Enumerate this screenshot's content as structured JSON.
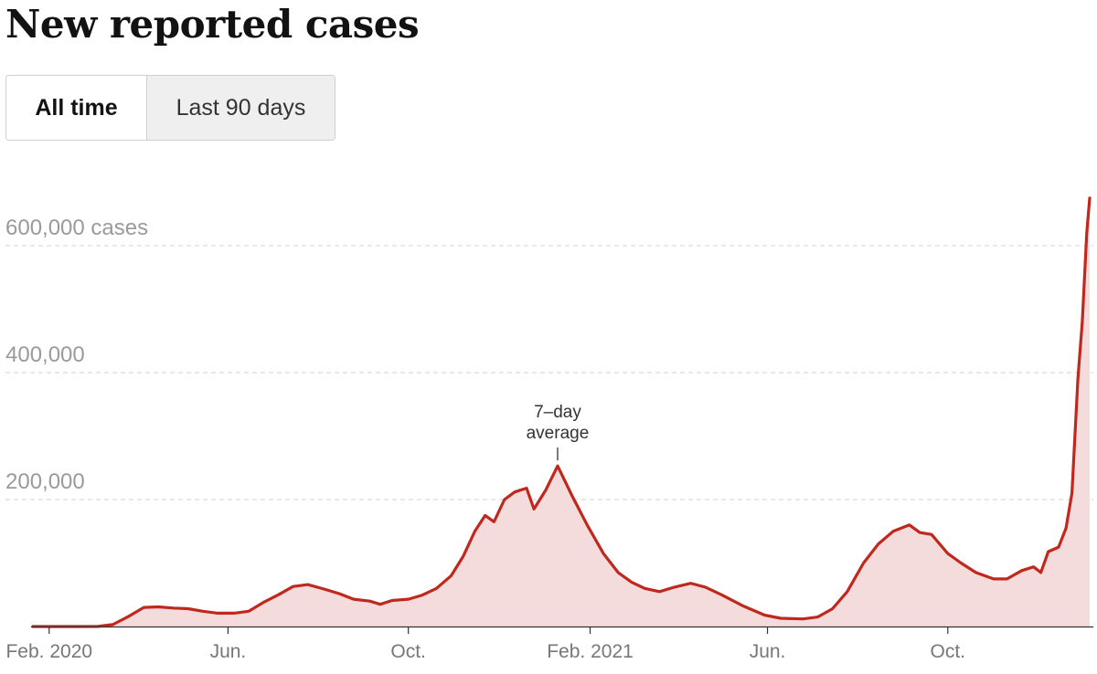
{
  "header": {
    "title": "New reported cases"
  },
  "range_toggle": {
    "options": [
      "All time",
      "Last 90 days"
    ],
    "selected": "All time"
  },
  "colors": {
    "line": "#c0281d",
    "area": "#f5dcdc",
    "grid": "#d9d9d9",
    "axis": "#333333"
  },
  "chart_data": {
    "type": "area",
    "title": "New reported cases",
    "y_unit_label": "cases",
    "ylim": [
      0,
      680000
    ],
    "y_ticks": [
      {
        "value": 200000,
        "label": "200,000"
      },
      {
        "value": 400000,
        "label": "400,000"
      },
      {
        "value": 600000,
        "label": "600,000 cases"
      }
    ],
    "x_ticks": [
      {
        "date": "2020-02-01",
        "label": "Feb. 2020"
      },
      {
        "date": "2020-06-01",
        "label": "Jun."
      },
      {
        "date": "2020-10-01",
        "label": "Oct."
      },
      {
        "date": "2021-02-01",
        "label": "Feb. 2021"
      },
      {
        "date": "2021-06-01",
        "label": "Jun."
      },
      {
        "date": "2021-10-01",
        "label": "Oct."
      }
    ],
    "grid": true,
    "annotation": {
      "lines": [
        "7–day",
        "average"
      ],
      "date": "2021-01-10",
      "value": 253000
    },
    "series": [
      {
        "name": "7–day average",
        "points": [
          [
            "2020-01-21",
            0
          ],
          [
            "2020-02-15",
            0
          ],
          [
            "2020-03-05",
            200
          ],
          [
            "2020-03-15",
            3000
          ],
          [
            "2020-03-25",
            15000
          ],
          [
            "2020-04-05",
            30000
          ],
          [
            "2020-04-15",
            31000
          ],
          [
            "2020-04-25",
            29000
          ],
          [
            "2020-05-05",
            28000
          ],
          [
            "2020-05-15",
            24000
          ],
          [
            "2020-05-25",
            21000
          ],
          [
            "2020-06-05",
            21000
          ],
          [
            "2020-06-15",
            24000
          ],
          [
            "2020-06-25",
            38000
          ],
          [
            "2020-07-05",
            50000
          ],
          [
            "2020-07-15",
            63000
          ],
          [
            "2020-07-25",
            66000
          ],
          [
            "2020-08-05",
            59000
          ],
          [
            "2020-08-15",
            52000
          ],
          [
            "2020-08-25",
            43000
          ],
          [
            "2020-09-05",
            40000
          ],
          [
            "2020-09-12",
            35000
          ],
          [
            "2020-09-20",
            41000
          ],
          [
            "2020-10-01",
            43000
          ],
          [
            "2020-10-10",
            49000
          ],
          [
            "2020-10-20",
            60000
          ],
          [
            "2020-10-30",
            80000
          ],
          [
            "2020-11-07",
            110000
          ],
          [
            "2020-11-15",
            150000
          ],
          [
            "2020-11-22",
            175000
          ],
          [
            "2020-11-28",
            165000
          ],
          [
            "2020-12-05",
            200000
          ],
          [
            "2020-12-12",
            212000
          ],
          [
            "2020-12-20",
            218000
          ],
          [
            "2020-12-25",
            185000
          ],
          [
            "2021-01-02",
            215000
          ],
          [
            "2021-01-10",
            253000
          ],
          [
            "2021-01-20",
            205000
          ],
          [
            "2021-01-30",
            160000
          ],
          [
            "2021-02-10",
            115000
          ],
          [
            "2021-02-20",
            85000
          ],
          [
            "2021-03-01",
            70000
          ],
          [
            "2021-03-10",
            60000
          ],
          [
            "2021-03-20",
            55000
          ],
          [
            "2021-03-30",
            62000
          ],
          [
            "2021-04-10",
            68000
          ],
          [
            "2021-04-20",
            62000
          ],
          [
            "2021-05-01",
            50000
          ],
          [
            "2021-05-15",
            33000
          ],
          [
            "2021-05-30",
            18000
          ],
          [
            "2021-06-10",
            13000
          ],
          [
            "2021-06-25",
            12000
          ],
          [
            "2021-07-05",
            15000
          ],
          [
            "2021-07-15",
            28000
          ],
          [
            "2021-07-25",
            55000
          ],
          [
            "2021-08-05",
            100000
          ],
          [
            "2021-08-15",
            130000
          ],
          [
            "2021-08-25",
            150000
          ],
          [
            "2021-09-05",
            160000
          ],
          [
            "2021-09-12",
            148000
          ],
          [
            "2021-09-20",
            145000
          ],
          [
            "2021-10-01",
            115000
          ],
          [
            "2021-10-10",
            100000
          ],
          [
            "2021-10-20",
            85000
          ],
          [
            "2021-11-01",
            75000
          ],
          [
            "2021-11-10",
            75000
          ],
          [
            "2021-11-20",
            88000
          ],
          [
            "2021-11-28",
            94000
          ],
          [
            "2021-12-03",
            85000
          ],
          [
            "2021-12-08",
            118000
          ],
          [
            "2021-12-15",
            125000
          ],
          [
            "2021-12-20",
            155000
          ],
          [
            "2021-12-24",
            210000
          ],
          [
            "2021-12-28",
            390000
          ],
          [
            "2021-12-31",
            480000
          ],
          [
            "2022-01-03",
            620000
          ],
          [
            "2022-01-05",
            675000
          ]
        ]
      }
    ]
  }
}
